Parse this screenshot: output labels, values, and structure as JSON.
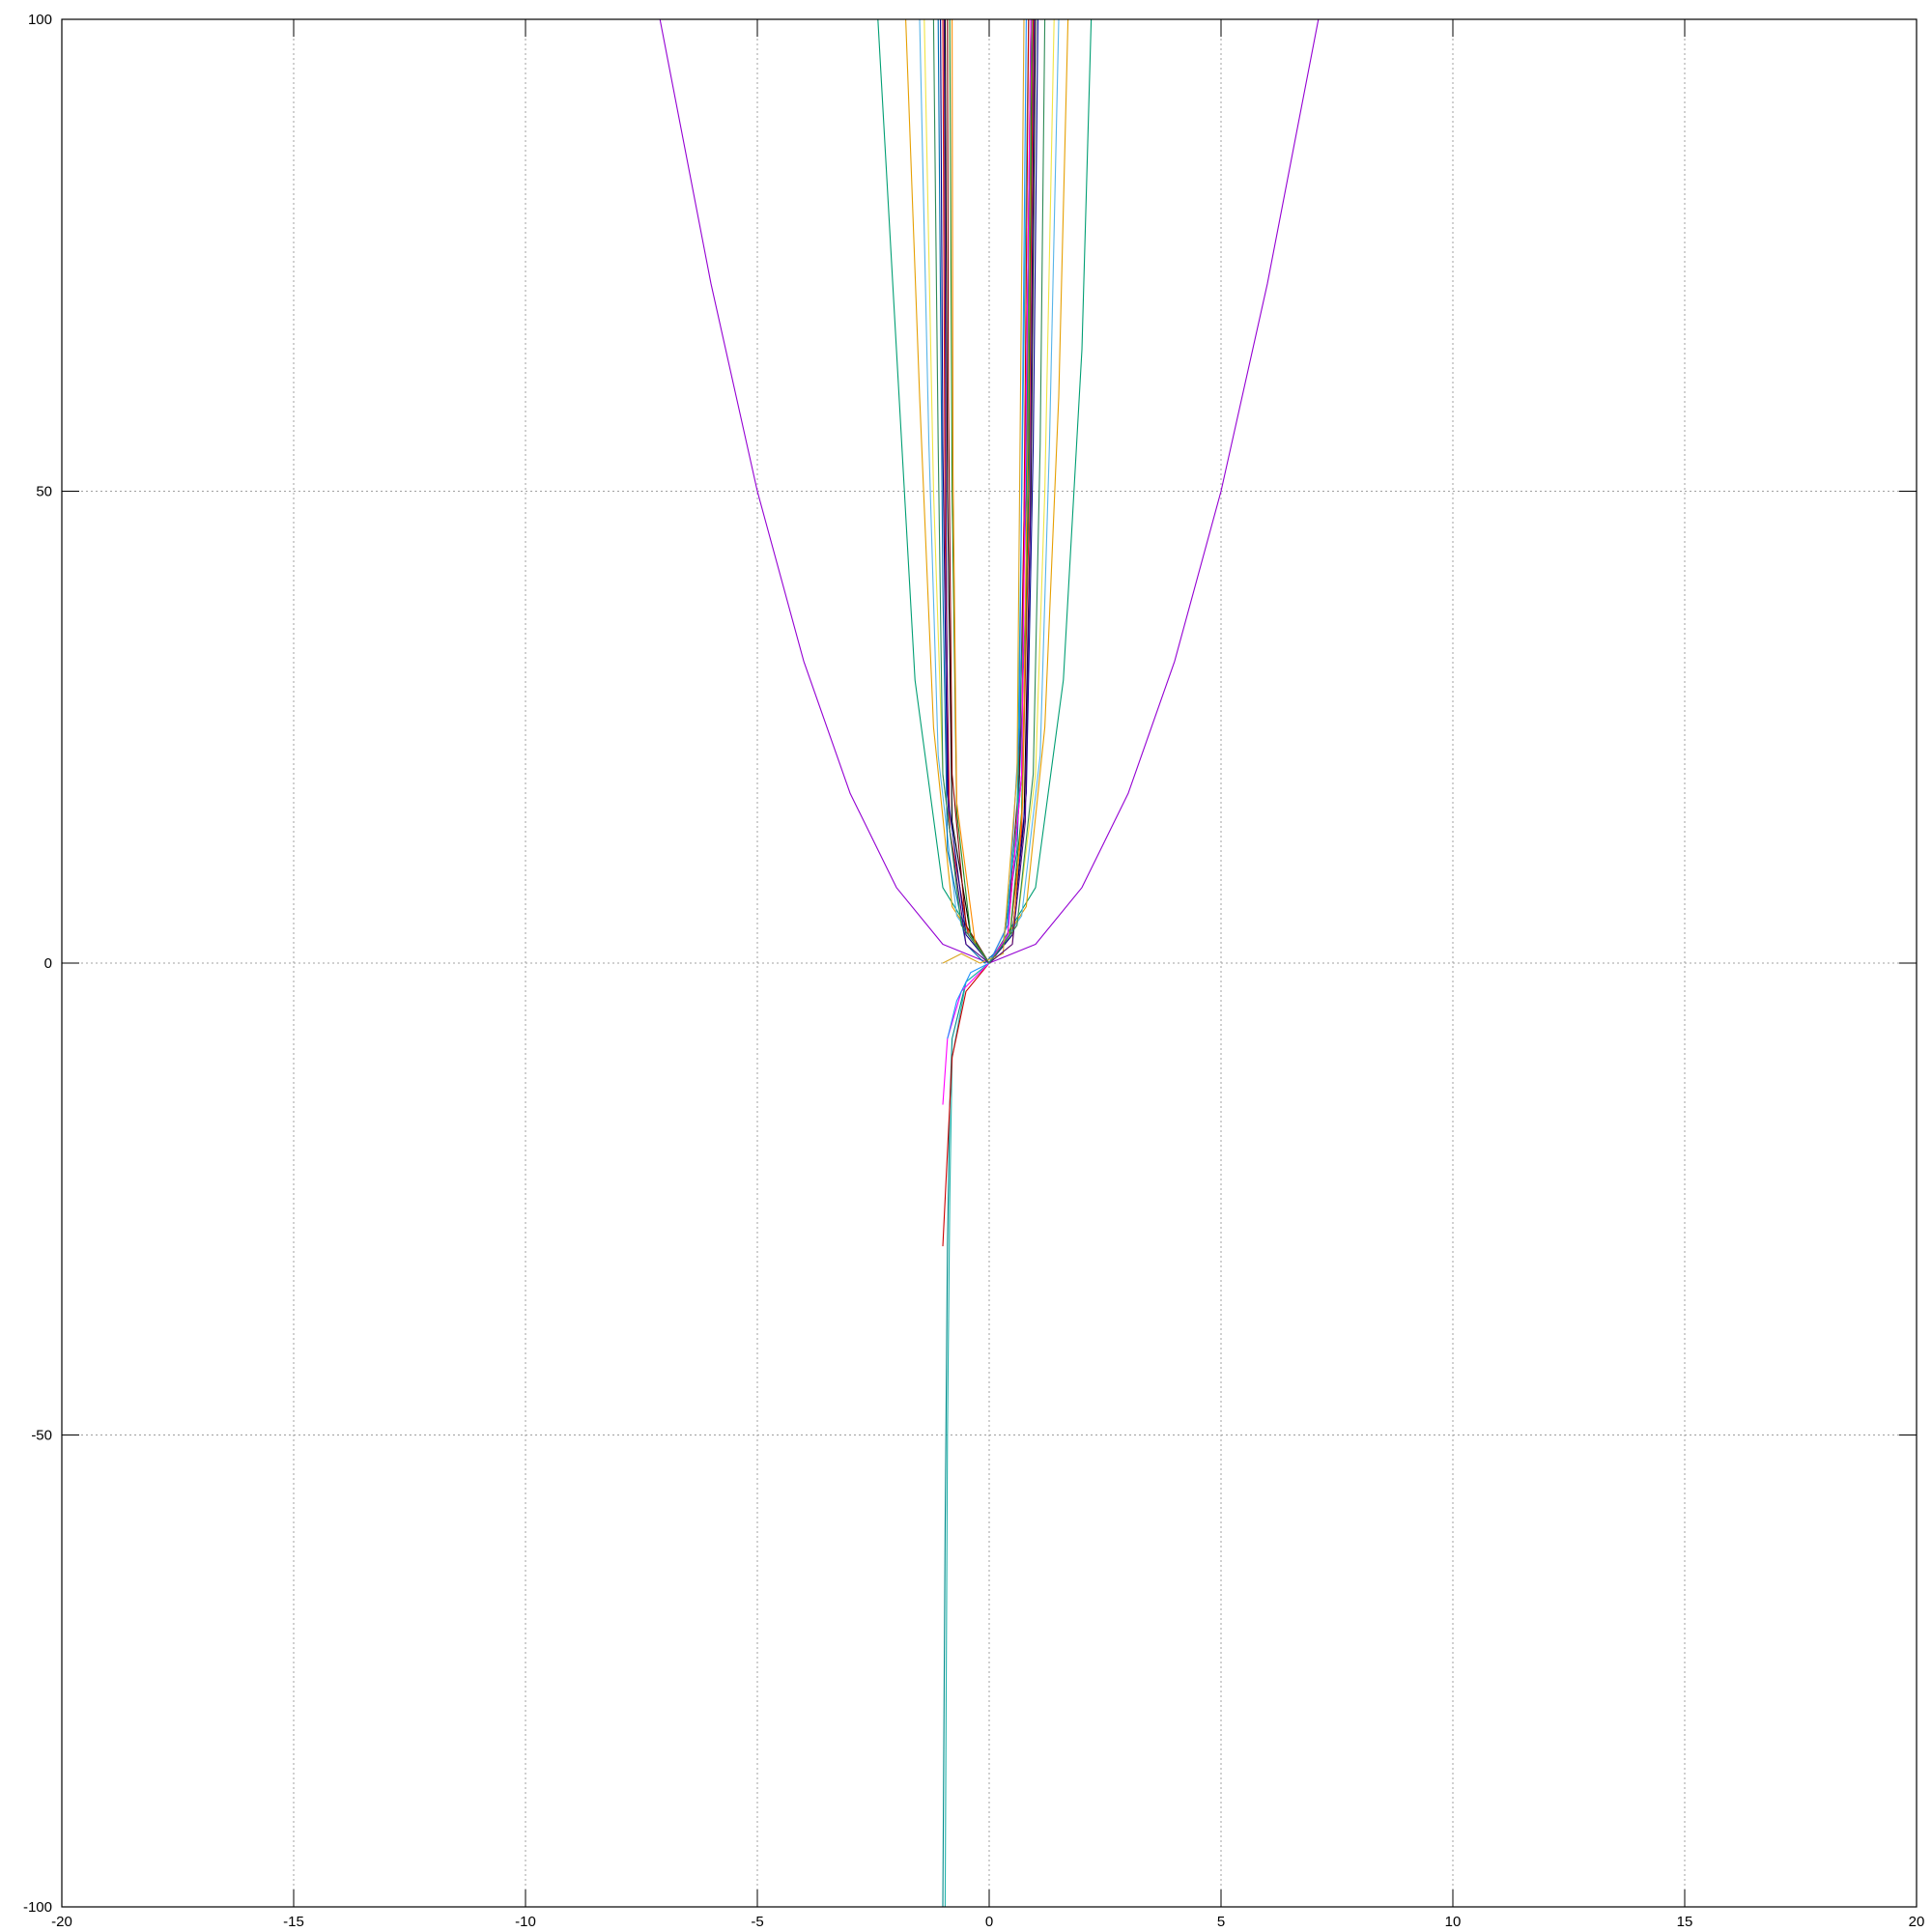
{
  "chart_data": {
    "type": "line",
    "title": "",
    "xlabel": "",
    "ylabel": "",
    "xlim": [
      -20,
      20
    ],
    "ylim": [
      -100,
      100
    ],
    "grid": true,
    "legend": "none",
    "x_ticks": [
      "-20",
      "-15",
      "-10",
      "-5",
      "0",
      "5",
      "10",
      "15",
      "20"
    ],
    "y_ticks": [
      "-100",
      "-50",
      "0",
      "50",
      "100"
    ],
    "series": [
      {
        "color": "#9400d3",
        "x": [
          -7.1,
          -6,
          -5,
          -4,
          -3,
          -2,
          -1,
          0,
          1,
          2,
          3,
          4,
          5,
          6,
          7.1
        ],
        "y": [
          100,
          72,
          50,
          32,
          18,
          8,
          2,
          0,
          2,
          8,
          18,
          32,
          50,
          72,
          100
        ]
      },
      {
        "color": "#009e73",
        "x": [
          -2.4,
          -2.0,
          -1.6,
          -1.0,
          0,
          1.0,
          1.6,
          2.0,
          2.2
        ],
        "y": [
          100,
          65,
          30,
          8,
          0,
          8,
          30,
          65,
          100
        ]
      },
      {
        "color": "#e69f00",
        "x": [
          -1.8,
          -1.5,
          -1.2,
          -0.8,
          0,
          0.8,
          1.2,
          1.5,
          1.7
        ],
        "y": [
          100,
          60,
          25,
          6,
          0,
          6,
          25,
          60,
          100
        ]
      },
      {
        "color": "#56b4e9",
        "x": [
          -1.5,
          -1.3,
          -1.1,
          -0.7,
          0,
          0.7,
          1.1,
          1.3,
          1.5
        ],
        "y": [
          100,
          55,
          22,
          5,
          0,
          5,
          22,
          55,
          100
        ]
      },
      {
        "color": "#f0e442",
        "x": [
          -1.4,
          -1.2,
          -1.0,
          -0.6,
          0,
          0.6,
          1.0,
          1.2,
          1.4
        ],
        "y": [
          100,
          50,
          20,
          4,
          0,
          4,
          20,
          50,
          100
        ]
      },
      {
        "color": "#0072b2",
        "x": [
          -1.1,
          -1.0,
          -0.9,
          -0.5,
          -0.1,
          0.3,
          0.6,
          0.8,
          0.95
        ],
        "y": [
          100,
          40,
          12,
          2,
          0,
          2,
          12,
          40,
          100
        ]
      },
      {
        "color": "#e51e10",
        "x": [
          -1.0,
          -0.95,
          -0.85,
          -0.45,
          0,
          0.45,
          0.7,
          0.85,
          0.95
        ],
        "y": [
          100,
          45,
          14,
          3,
          0,
          3,
          14,
          45,
          100
        ]
      },
      {
        "color": "#000000",
        "x": [
          -0.95,
          -0.9,
          -0.8,
          -0.4,
          0,
          0.5,
          0.75,
          0.9,
          1.0
        ],
        "y": [
          100,
          50,
          15,
          3,
          0,
          3,
          15,
          50,
          100
        ]
      },
      {
        "color": "#8b0000",
        "x": [
          -0.9,
          -0.88,
          -0.8,
          -0.5,
          0,
          0.4,
          0.65,
          0.8,
          0.9
        ],
        "y": [
          100,
          60,
          20,
          4,
          0,
          4,
          20,
          60,
          100
        ]
      },
      {
        "color": "#00008b",
        "x": [
          -1.05,
          -1.0,
          -0.9,
          -0.5,
          0,
          0.5,
          0.8,
          0.95,
          1.05
        ],
        "y": [
          100,
          55,
          18,
          3,
          0,
          3,
          18,
          55,
          100
        ]
      },
      {
        "color": "#228b22",
        "x": [
          -0.85,
          -0.8,
          -0.7,
          -0.4,
          0,
          0.45,
          0.7,
          0.85,
          0.92
        ],
        "y": [
          100,
          50,
          16,
          3,
          0,
          3,
          16,
          50,
          100
        ]
      },
      {
        "color": "#ff8c00",
        "x": [
          -0.8,
          -0.78,
          -0.7,
          -0.3,
          0,
          0.5,
          0.72,
          0.82,
          0.9
        ],
        "y": [
          100,
          52,
          17,
          2,
          0,
          2,
          17,
          52,
          100
        ]
      },
      {
        "color": "#008b8b",
        "x": [
          -1.0,
          -0.95,
          -0.9,
          -0.85,
          -0.8,
          -0.5,
          0,
          0.3,
          0.6,
          0.8,
          0.9
        ],
        "y": [
          -100,
          -60,
          -30,
          -15,
          -8,
          -2,
          0,
          2,
          15,
          50,
          100
        ]
      },
      {
        "color": "#20b2aa",
        "x": [
          -0.95,
          -0.9,
          -0.85,
          -0.8,
          -0.5,
          0,
          0.3,
          0.6,
          0.85
        ],
        "y": [
          -100,
          -50,
          -25,
          -10,
          -2,
          0,
          2,
          15,
          100
        ]
      },
      {
        "color": "#cc0000",
        "x": [
          -1.0,
          -0.9,
          -0.8,
          -0.5,
          0,
          0.4,
          0.7,
          0.85
        ],
        "y": [
          -30,
          -20,
          -10,
          -3,
          0,
          3,
          20,
          100
        ]
      },
      {
        "color": "#ff00ff",
        "x": [
          -1.0,
          -0.9,
          -0.6,
          0,
          0.4,
          0.7,
          0.9
        ],
        "y": [
          -15,
          -8,
          -3,
          0,
          3,
          20,
          100
        ]
      },
      {
        "color": "#1e90ff",
        "x": [
          -0.9,
          -0.7,
          -0.4,
          0,
          0.4,
          0.65,
          0.8
        ],
        "y": [
          -8,
          -4,
          -1,
          0,
          4,
          25,
          100
        ]
      },
      {
        "color": "#daa520",
        "x": [
          -1.0,
          -0.6,
          -0.2,
          0.3,
          0.6,
          0.75
        ],
        "y": [
          0,
          1,
          0,
          1,
          20,
          100
        ]
      },
      {
        "color": "#4b0082",
        "x": [
          -0.97,
          -0.93,
          -0.88,
          -0.5,
          0,
          0.5,
          0.78,
          0.88,
          0.97
        ],
        "y": [
          100,
          45,
          15,
          2,
          0,
          2,
          15,
          45,
          100
        ]
      },
      {
        "color": "#2e8b57",
        "x": [
          -1.2,
          -1.1,
          -1.0,
          -0.6,
          0,
          0.6,
          0.95,
          1.1,
          1.2
        ],
        "y": [
          100,
          55,
          20,
          4,
          0,
          4,
          20,
          55,
          100
        ]
      }
    ]
  }
}
